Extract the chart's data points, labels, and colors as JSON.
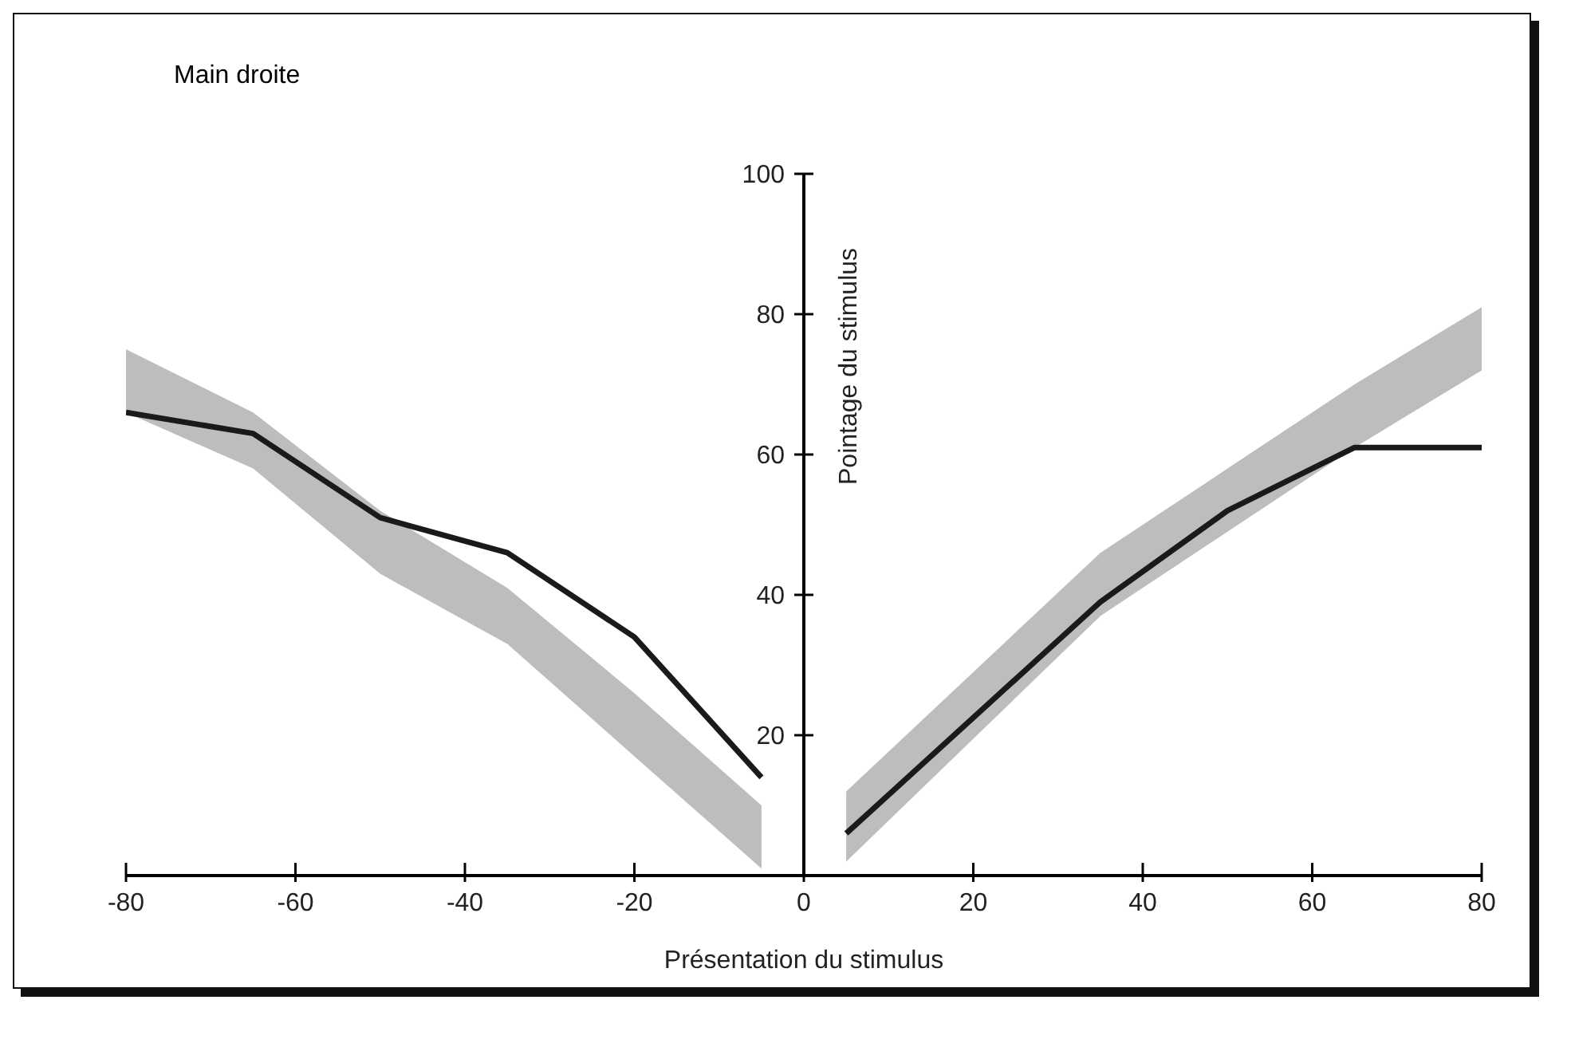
{
  "chart_data": {
    "type": "line",
    "title": "Main droite",
    "xlabel": "Présentation du stimulus",
    "ylabel": "Pointage du stimulus",
    "xlim": [
      -80,
      80
    ],
    "xticks": [
      -80,
      -60,
      -40,
      -20,
      0,
      20,
      40,
      60,
      80
    ],
    "ylim": [
      0,
      100
    ],
    "yticks": [
      20,
      40,
      60,
      80,
      100
    ],
    "series": [
      {
        "color": "#1a1a1a",
        "x": [
          -80,
          -65,
          -50,
          -35,
          -20,
          -5
        ],
        "values": [
          66,
          63,
          51,
          46,
          34,
          14
        ],
        "lower": [
          66,
          58,
          43,
          33,
          17,
          1
        ],
        "upper": [
          75,
          66,
          52,
          41,
          26,
          10
        ]
      },
      {
        "color": "#1a1a1a",
        "x": [
          5,
          35,
          50,
          65,
          80
        ],
        "values": [
          6,
          39,
          52,
          61,
          61
        ],
        "lower": [
          2,
          37,
          49,
          61,
          72
        ],
        "upper": [
          12,
          46,
          58,
          70,
          81
        ]
      }
    ]
  }
}
